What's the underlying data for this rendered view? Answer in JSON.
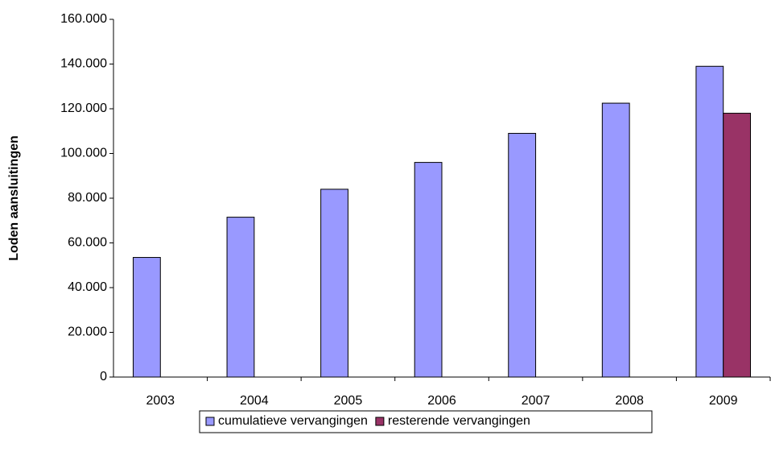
{
  "chart_data": {
    "type": "bar",
    "ylabel": "Loden aansluitingen",
    "categories": [
      "2003",
      "2004",
      "2005",
      "2006",
      "2007",
      "2008",
      "2009"
    ],
    "series": [
      {
        "name": "cumulatieve vervangingen",
        "color": "#9999ff",
        "values": [
          53500,
          71500,
          84000,
          96000,
          109000,
          122500,
          139000
        ]
      },
      {
        "name": "resterende vervangingen",
        "color": "#993366",
        "values": [
          null,
          null,
          null,
          null,
          null,
          null,
          118000
        ]
      }
    ],
    "ylim": [
      0,
      160000
    ],
    "yticks": [
      0,
      {
        "value": 20000,
        "label": "20.000"
      },
      {
        "value": 40000,
        "label": "40.000"
      },
      {
        "value": 60000,
        "label": "60.000"
      },
      {
        "value": 80000,
        "label": "80.000"
      },
      {
        "value": 100000,
        "label": "100.000"
      },
      {
        "value": 120000,
        "label": "120.000"
      },
      {
        "value": 140000,
        "label": "140.000"
      },
      {
        "value": 160000,
        "label": "160.000"
      }
    ],
    "legend": "bottom"
  }
}
